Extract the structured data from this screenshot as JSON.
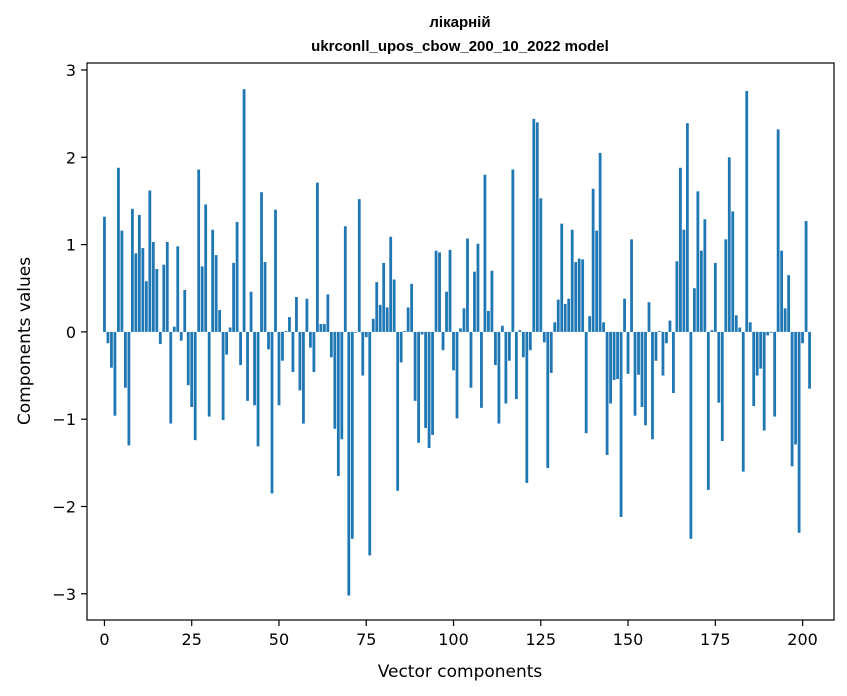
{
  "chart_data": {
    "type": "bar",
    "title": "лікарній",
    "subtitle": "ukrconll_upos_cbow_200_10_2022 model",
    "xlabel": "Vector components",
    "ylabel": "Components values",
    "xlim": [
      -5,
      209
    ],
    "ylim": [
      -3.3,
      3.08
    ],
    "xticks": [
      0,
      25,
      50,
      75,
      100,
      125,
      150,
      175,
      200
    ],
    "yticks": [
      -3,
      -2,
      -1,
      0,
      1,
      2,
      3
    ],
    "xtick_labels": [
      "0",
      "25",
      "50",
      "75",
      "100",
      "125",
      "150",
      "175",
      "200"
    ],
    "ytick_labels": [
      "−3",
      "−2",
      "−1",
      "0",
      "1",
      "2",
      "3"
    ],
    "grid": false,
    "bar_color": "#1f77b4",
    "values": [
      1.32,
      -0.13,
      -0.41,
      -0.96,
      1.88,
      1.16,
      -0.64,
      -1.3,
      1.41,
      0.9,
      1.34,
      0.96,
      0.58,
      1.62,
      1.03,
      0.72,
      -0.14,
      0.77,
      1.03,
      -1.05,
      0.06,
      0.98,
      -0.1,
      0.48,
      -0.61,
      -0.86,
      -1.24,
      1.86,
      0.75,
      1.46,
      -0.97,
      1.17,
      0.88,
      0.25,
      -1.01,
      -0.26,
      0.05,
      0.79,
      1.26,
      -0.38,
      2.78,
      -0.79,
      0.46,
      -0.84,
      -1.31,
      1.6,
      0.8,
      -0.2,
      -1.85,
      1.4,
      -0.84,
      -0.33,
      0.01,
      0.17,
      -0.46,
      0.4,
      -0.67,
      -1.05,
      0.38,
      -0.18,
      -0.46,
      1.71,
      0.09,
      0.09,
      0.43,
      -0.29,
      -1.11,
      -1.65,
      -1.23,
      1.21,
      -3.02,
      -2.37,
      -0.01,
      1.52,
      -0.5,
      -0.06,
      -2.56,
      0.15,
      0.57,
      0.31,
      0.79,
      0.28,
      1.09,
      0.6,
      -1.82,
      -0.35,
      0.01,
      0.28,
      0.55,
      -0.79,
      -1.27,
      -0.03,
      -1.1,
      -1.33,
      -1.18,
      0.93,
      0.91,
      -0.21,
      0.46,
      0.94,
      -0.44,
      -0.99,
      0.04,
      0.27,
      1.07,
      -0.64,
      0.69,
      1.01,
      -0.87,
      1.8,
      0.24,
      0.7,
      -0.38,
      -1.05,
      0.07,
      -0.82,
      -0.33,
      1.86,
      -0.77,
      0.02,
      -0.29,
      -1.73,
      -0.21,
      2.44,
      2.4,
      1.53,
      -0.12,
      -1.56,
      -0.47,
      0.11,
      0.37,
      1.24,
      0.32,
      0.38,
      1.17,
      0.8,
      0.84,
      0.83,
      -1.16,
      0.18,
      1.64,
      1.16,
      2.05,
      0.11,
      -1.41,
      -0.82,
      -0.55,
      -0.54,
      -2.12,
      0.38,
      -0.48,
      1.06,
      -0.96,
      -0.49,
      -0.86,
      -1.07,
      0.34,
      -1.23,
      -0.33,
      0.01,
      -0.5,
      -0.13,
      0.13,
      -0.7,
      0.81,
      1.88,
      1.17,
      2.39,
      -2.37,
      0.5,
      1.61,
      0.93,
      1.29,
      -1.81,
      0.02,
      0.79,
      -0.81,
      -1.25,
      1.06,
      2.0,
      1.38,
      0.19,
      0.05,
      -1.6,
      2.76,
      0.11,
      -0.85,
      -0.5,
      -0.42,
      -1.13,
      -0.04,
      -0.01,
      -0.97,
      2.32,
      0.93,
      0.27,
      0.65,
      -1.54,
      -1.29,
      -2.3,
      -0.13,
      1.27,
      -0.65
    ]
  }
}
